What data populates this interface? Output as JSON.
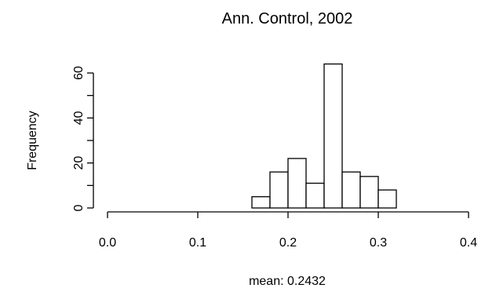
{
  "chart_data": {
    "type": "bar",
    "title": "Ann. Control, 2002",
    "xlabel": "mean:  0.2432",
    "ylabel": "Frequency",
    "xlim": [
      0.0,
      0.4
    ],
    "ylim": [
      0,
      65
    ],
    "x_ticks": [
      "0.0",
      "0.1",
      "0.2",
      "0.3",
      "0.4"
    ],
    "y_ticks": [
      "0",
      "20",
      "40",
      "60"
    ],
    "bin_width": 0.02,
    "bins": [
      {
        "start": 0.16,
        "end": 0.18,
        "count": 5
      },
      {
        "start": 0.18,
        "end": 0.2,
        "count": 16
      },
      {
        "start": 0.2,
        "end": 0.22,
        "count": 22
      },
      {
        "start": 0.22,
        "end": 0.24,
        "count": 11
      },
      {
        "start": 0.24,
        "end": 0.26,
        "count": 64
      },
      {
        "start": 0.26,
        "end": 0.28,
        "count": 16
      },
      {
        "start": 0.28,
        "end": 0.3,
        "count": 14
      },
      {
        "start": 0.3,
        "end": 0.32,
        "count": 8
      }
    ],
    "grid": false,
    "legend": "none"
  }
}
